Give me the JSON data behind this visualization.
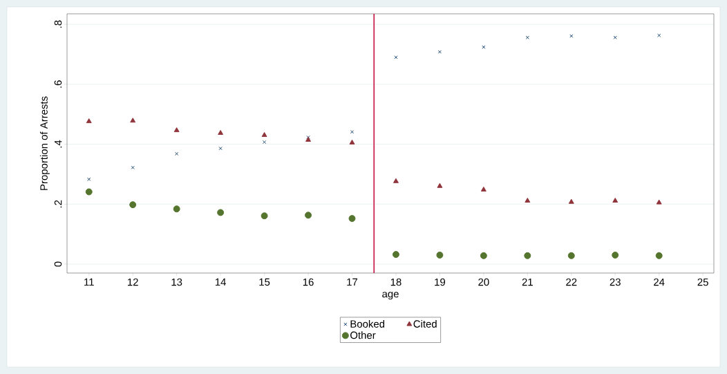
{
  "chart_data": {
    "type": "scatter",
    "xlabel": "age",
    "ylabel": "Proportion of Arrests",
    "x": [
      11,
      12,
      13,
      14,
      15,
      16,
      17,
      18,
      19,
      20,
      21,
      22,
      23,
      24
    ],
    "series": [
      {
        "name": "Booked",
        "color": "#1a476f",
        "marker": "cross",
        "values": [
          0.283,
          0.322,
          0.368,
          0.386,
          0.407,
          0.423,
          0.441,
          0.69,
          0.708,
          0.724,
          0.756,
          0.761,
          0.756,
          0.763
        ]
      },
      {
        "name": "Cited",
        "color": "#90353b",
        "marker": "triangle",
        "values": [
          0.476,
          0.478,
          0.446,
          0.437,
          0.43,
          0.414,
          0.405,
          0.276,
          0.26,
          0.248,
          0.211,
          0.207,
          0.211,
          0.205
        ]
      },
      {
        "name": "Other",
        "color": "#55752f",
        "marker": "circle",
        "values": [
          0.241,
          0.198,
          0.184,
          0.172,
          0.161,
          0.163,
          0.152,
          0.032,
          0.03,
          0.028,
          0.028,
          0.028,
          0.03,
          0.028
        ]
      }
    ],
    "xlim": [
      10.5,
      25.25
    ],
    "ylim": [
      -0.03,
      0.835
    ],
    "xticks": [
      11,
      12,
      13,
      14,
      15,
      16,
      17,
      18,
      19,
      20,
      21,
      22,
      23,
      24,
      25
    ],
    "yticks": [
      {
        "value": 0,
        "label": "0"
      },
      {
        "value": 0.2,
        "label": ".2"
      },
      {
        "value": 0.4,
        "label": ".4"
      },
      {
        "value": 0.6,
        "label": ".6"
      },
      {
        "value": 0.8,
        "label": ".8"
      }
    ],
    "ref_lines": [
      {
        "axis": "x",
        "value": 17.5,
        "color": "#c10534"
      }
    ],
    "grid": "y",
    "legend": "bottom"
  }
}
